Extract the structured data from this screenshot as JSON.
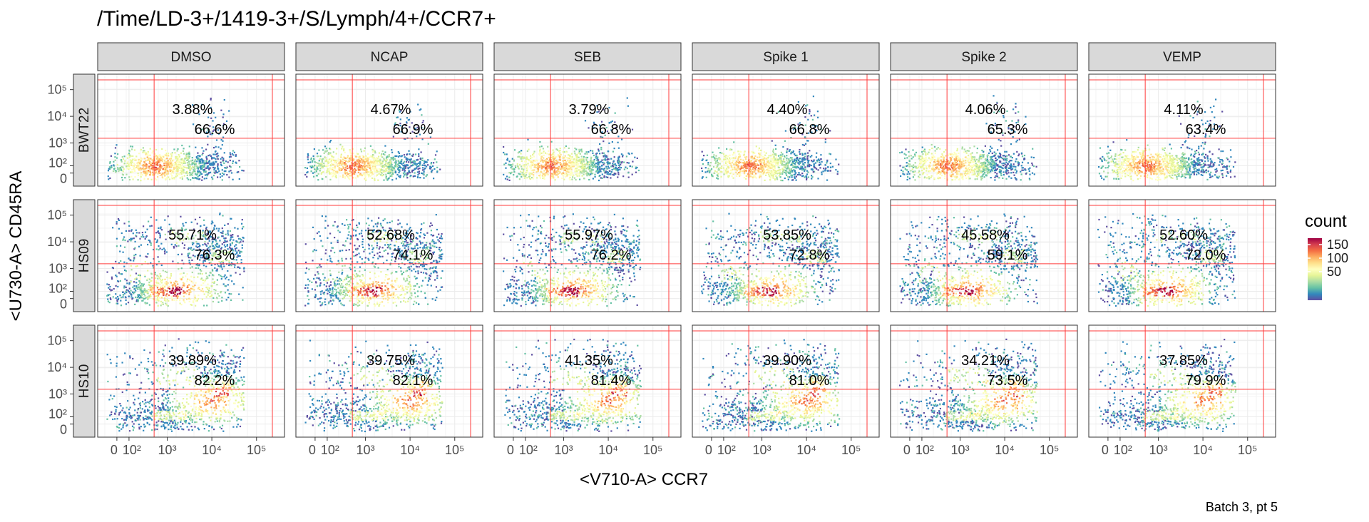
{
  "chart_data": {
    "type": "scatter",
    "title": "/Time/LD-3+/1419-3+/S/Lymph/4+/CCR7+",
    "xlabel": "<V710-A> CCR7",
    "ylabel": "<U730-A> CD45RA",
    "caption": "Batch 3, pt 5",
    "col_strips": [
      "DMSO",
      "NCAP",
      "SEB",
      "Spike 1",
      "Spike 2",
      "VEMP"
    ],
    "row_strips": [
      "BWT22",
      "HS09",
      "HS10"
    ],
    "x_tick_labels": [
      "0",
      "10²",
      "10³",
      "10⁴",
      "10⁵"
    ],
    "y_tick_labels": [
      "0",
      "10²",
      "10³",
      "10⁴",
      "10⁵"
    ],
    "scale": "biexponential",
    "gates": {
      "x": 500,
      "y": 1500
    },
    "legend": {
      "title": "count",
      "ticks": [
        "150",
        "100",
        "50"
      ],
      "colors": [
        "#9e0142",
        "#d53e4f",
        "#f46d43",
        "#fdae61",
        "#fee08b",
        "#ffffbf",
        "#e6f598",
        "#abdda4",
        "#66c2a5",
        "#3288bd",
        "#5e4fa2"
      ]
    },
    "annotations": [
      [
        {
          "top": "3.88%",
          "right": "66.6%"
        },
        {
          "top": "4.67%",
          "right": "66.9%"
        },
        {
          "top": "3.79%",
          "right": "66.8%"
        },
        {
          "top": "4.40%",
          "right": "66.8%"
        },
        {
          "top": "4.06%",
          "right": "65.3%"
        },
        {
          "top": "4.11%",
          "right": "63.4%"
        }
      ],
      [
        {
          "top": "55.71%",
          "right": "76.3%"
        },
        {
          "top": "52.68%",
          "right": "74.1%"
        },
        {
          "top": "55.97%",
          "right": "76.2%"
        },
        {
          "top": "53.85%",
          "right": "72.8%"
        },
        {
          "top": "45.58%",
          "right": "59.1%"
        },
        {
          "top": "52.60%",
          "right": "72.0%"
        }
      ],
      [
        {
          "top": "39.89%",
          "right": "82.2%"
        },
        {
          "top": "39.75%",
          "right": "82.1%"
        },
        {
          "top": "41.35%",
          "right": "81.4%"
        },
        {
          "top": "39.90%",
          "right": "81.0%"
        },
        {
          "top": "34.21%",
          "right": "73.5%"
        },
        {
          "top": "37.85%",
          "right": "79.9%"
        }
      ]
    ]
  }
}
